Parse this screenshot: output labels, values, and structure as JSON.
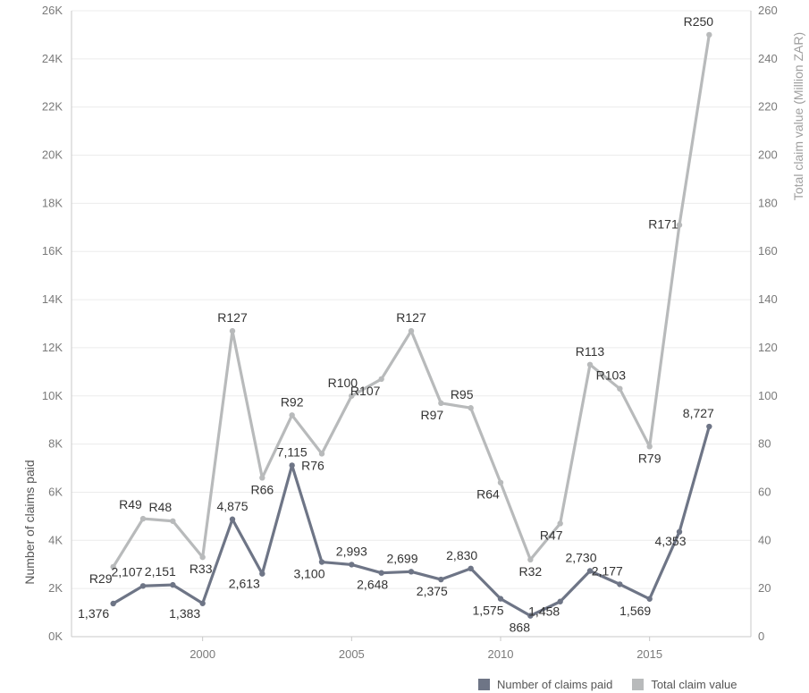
{
  "chart_data": {
    "type": "line",
    "x": [
      1997,
      1998,
      1999,
      2000,
      2001,
      2002,
      2003,
      2004,
      2005,
      2006,
      2007,
      2008,
      2009,
      2010,
      2011,
      2012,
      2013,
      2014,
      2015,
      2016,
      2017
    ],
    "x_ticks": [
      "2000",
      "2005",
      "2010",
      "2015"
    ],
    "xlim": [
      1995.6,
      2018.4
    ],
    "y_left": {
      "label": "Number of claims paid",
      "range": [
        0,
        26000
      ],
      "ticks": [
        "0K",
        "2K",
        "4K",
        "6K",
        "8K",
        "10K",
        "12K",
        "14K",
        "16K",
        "18K",
        "20K",
        "22K",
        "24K",
        "26K"
      ]
    },
    "y_right": {
      "label": "Total claim value (Million ZAR)",
      "range": [
        0,
        260
      ],
      "ticks": [
        "0",
        "20",
        "40",
        "60",
        "80",
        "100",
        "120",
        "140",
        "160",
        "180",
        "200",
        "220",
        "240",
        "260"
      ]
    },
    "series": [
      {
        "name": "Number of claims paid",
        "axis": "left",
        "color": "#6e7586",
        "values": [
          1376,
          2107,
          2151,
          1383,
          4875,
          2613,
          7115,
          3100,
          2993,
          2648,
          2699,
          2375,
          2830,
          1575,
          868,
          1458,
          2730,
          2177,
          1569,
          4353,
          8727
        ],
        "labels": [
          "1,376",
          "2,107",
          "2,151",
          "1,383",
          "4,875",
          "2,613",
          "7,115",
          "3,100",
          "2,993",
          "2,648",
          "2,699",
          "2,375",
          "2,830",
          "1,575",
          "868",
          "1,458",
          "2,730",
          "2,177",
          "1,569",
          "4,353",
          "8,727"
        ]
      },
      {
        "name": "Total claim value",
        "axis": "right",
        "color": "#b8babb",
        "values": [
          29,
          49,
          48,
          33,
          127,
          66,
          92,
          76,
          100,
          107,
          127,
          97,
          95,
          64,
          32,
          47,
          113,
          103,
          79,
          171,
          250
        ],
        "labels": [
          "R29",
          "R49",
          "R48",
          "R33",
          "R127",
          "R66",
          "R92",
          "R76",
          "R100",
          "R107",
          "R127",
          "R97",
          "R95",
          "R64",
          "R32",
          "R47",
          "R113",
          "R103",
          "R79",
          "R171",
          "R250"
        ]
      }
    ],
    "grid": true,
    "legend_position": "bottom-right"
  },
  "colors": {
    "grid": "#ececec",
    "axis_line": "#c8c8c8",
    "right_axis_title": "#9e9e9e",
    "left_axis_title": "#555555"
  }
}
